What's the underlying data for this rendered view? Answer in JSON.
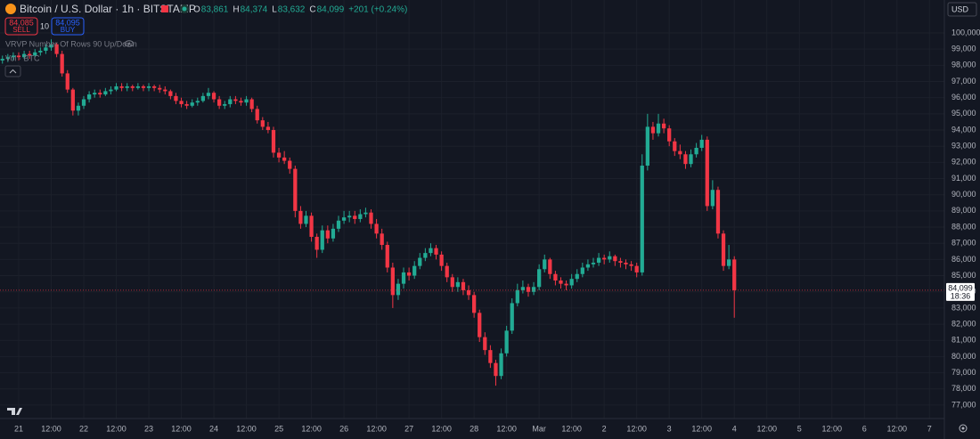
{
  "header": {
    "symbol": "Bitcoin / U.S. Dollar · 1h · BITSTAMP",
    "ohlc": [
      {
        "label": "O",
        "value": "83,861"
      },
      {
        "label": "H",
        "value": "84,374"
      },
      {
        "label": "L",
        "value": "83,632"
      },
      {
        "label": "C",
        "value": "84,099"
      }
    ],
    "change": "+201 (+0.24%)"
  },
  "trade": {
    "sell_price": "84,085",
    "sell": "SELL",
    "spread": "10",
    "buy_price": "84,095",
    "buy": "BUY"
  },
  "indicators": [
    "VRVP Number Of Rows 90 Up/Down",
    "Vol · BTC"
  ],
  "currency": "USD",
  "last_price_label": {
    "price": "84,099",
    "countdown": "18:36"
  },
  "chart_data": {
    "type": "candlestick",
    "up_color": "#22ab94",
    "down_color": "#f23645",
    "grid": true,
    "xlim": [
      -6.9,
      341.5
    ],
    "ylim": [
      76170,
      102036
    ],
    "xticks": [
      {
        "value": 0,
        "label": "21"
      },
      {
        "value": 12,
        "label": "12:00"
      },
      {
        "value": 24,
        "label": "22"
      },
      {
        "value": 36,
        "label": "12:00"
      },
      {
        "value": 48,
        "label": "23"
      },
      {
        "value": 60,
        "label": "12:00"
      },
      {
        "value": 72,
        "label": "24"
      },
      {
        "value": 84,
        "label": "12:00"
      },
      {
        "value": 96,
        "label": "25"
      },
      {
        "value": 108,
        "label": "12:00"
      },
      {
        "value": 120,
        "label": "26"
      },
      {
        "value": 132,
        "label": "12:00"
      },
      {
        "value": 144,
        "label": "27"
      },
      {
        "value": 156,
        "label": "12:00"
      },
      {
        "value": 168,
        "label": "28"
      },
      {
        "value": 180,
        "label": "12:00"
      },
      {
        "value": 192,
        "label": "Mar"
      },
      {
        "value": 204,
        "label": "12:00"
      },
      {
        "value": 216,
        "label": "2"
      },
      {
        "value": 228,
        "label": "12:00"
      },
      {
        "value": 240,
        "label": "3"
      },
      {
        "value": 252,
        "label": "12:00"
      },
      {
        "value": 264,
        "label": "4"
      },
      {
        "value": 276,
        "label": "12:00"
      },
      {
        "value": 288,
        "label": "5"
      },
      {
        "value": 300,
        "label": "12:00"
      },
      {
        "value": 312,
        "label": "6"
      },
      {
        "value": 324,
        "label": "12:00"
      },
      {
        "value": 336,
        "label": "7"
      }
    ],
    "yticks": [
      {
        "value": 77000,
        "label": "77,000"
      },
      {
        "value": 78000,
        "label": "78,000"
      },
      {
        "value": 79000,
        "label": "79,000"
      },
      {
        "value": 80000,
        "label": "80,000"
      },
      {
        "value": 81000,
        "label": "81,000"
      },
      {
        "value": 82000,
        "label": "82,000"
      },
      {
        "value": 83000,
        "label": "83,000"
      },
      {
        "value": 84000,
        "label": "84,000"
      },
      {
        "value": 85000,
        "label": "85,000"
      },
      {
        "value": 86000,
        "label": "86,000"
      },
      {
        "value": 87000,
        "label": "87,000"
      },
      {
        "value": 88000,
        "label": "88,000"
      },
      {
        "value": 89000,
        "label": "89,000"
      },
      {
        "value": 90000,
        "label": "90,000"
      },
      {
        "value": 91000,
        "label": "91,000"
      },
      {
        "value": 92000,
        "label": "92,000"
      },
      {
        "value": 93000,
        "label": "93,000"
      },
      {
        "value": 94000,
        "label": "94,000"
      },
      {
        "value": 95000,
        "label": "95,000"
      },
      {
        "value": 96000,
        "label": "96,000"
      },
      {
        "value": 97000,
        "label": "97,000"
      },
      {
        "value": 98000,
        "label": "98,000"
      },
      {
        "value": 99000,
        "label": "99,000"
      },
      {
        "value": 100000,
        "label": "100,000"
      }
    ],
    "x": [
      -6,
      -4,
      -2,
      0,
      2,
      4,
      6,
      8,
      10,
      12,
      14,
      16,
      18,
      20,
      22,
      24,
      26,
      28,
      30,
      32,
      34,
      36,
      38,
      40,
      42,
      44,
      46,
      48,
      50,
      52,
      54,
      56,
      58,
      60,
      62,
      64,
      66,
      68,
      70,
      72,
      74,
      76,
      78,
      80,
      82,
      84,
      86,
      88,
      90,
      92,
      94,
      96,
      98,
      100,
      102,
      104,
      106,
      108,
      110,
      112,
      114,
      116,
      118,
      120,
      122,
      124,
      126,
      128,
      130,
      132,
      134,
      136,
      138,
      140,
      142,
      144,
      146,
      148,
      150,
      152,
      154,
      156,
      158,
      160,
      162,
      164,
      166,
      168,
      170,
      172,
      174,
      176,
      178,
      180,
      182,
      184,
      186,
      188,
      190,
      192,
      194,
      196,
      198,
      200,
      202,
      204,
      206,
      208,
      210,
      212,
      214,
      216,
      218,
      220,
      222,
      224,
      226,
      228,
      230,
      232,
      234,
      236,
      238,
      240,
      242,
      244,
      246,
      248,
      250,
      252,
      254,
      256,
      258,
      260,
      262,
      264
    ],
    "open": [
      98300,
      98400,
      98500,
      98600,
      98500,
      98700,
      98600,
      98800,
      98900,
      99100,
      99300,
      98700,
      97500,
      96500,
      95200,
      95500,
      95900,
      96200,
      96300,
      96200,
      96400,
      96500,
      96700,
      96600,
      96700,
      96600,
      96700,
      96600,
      96700,
      96600,
      96500,
      96400,
      96100,
      95800,
      95600,
      95500,
      95700,
      95800,
      96100,
      96300,
      95900,
      95500,
      95600,
      95900,
      95800,
      95700,
      95900,
      95300,
      94600,
      94200,
      94000,
      92600,
      92300,
      92100,
      91600,
      89000,
      88200,
      88700,
      87400,
      86600,
      87800,
      87300,
      87900,
      88400,
      88600,
      88700,
      88500,
      88800,
      88900,
      88200,
      87600,
      86900,
      85500,
      83800,
      84500,
      85200,
      85000,
      85600,
      86100,
      86400,
      86700,
      86300,
      85600,
      84900,
      84300,
      84600,
      84100,
      83800,
      82700,
      81200,
      80400,
      79600,
      78800,
      80200,
      81600,
      83300,
      84100,
      84300,
      84000,
      84300,
      85400,
      86000,
      85100,
      84700,
      84500,
      84400,
      84800,
      85100,
      85500,
      85700,
      85800,
      86100,
      86000,
      86200,
      85900,
      85800,
      85700,
      85600,
      85200,
      91800,
      94200,
      93800,
      94400,
      94100,
      93300,
      92700,
      92500,
      91900,
      92500,
      92900,
      93400,
      89300,
      90300,
      87600,
      85600,
      86000
    ],
    "high": [
      98600,
      98700,
      98800,
      98800,
      98900,
      98900,
      99000,
      99100,
      99300,
      99600,
      99400,
      98900,
      97700,
      96600,
      95700,
      96100,
      96400,
      96500,
      96500,
      96600,
      96700,
      96900,
      96900,
      96900,
      96800,
      96900,
      96800,
      96900,
      96800,
      96800,
      96700,
      96500,
      96300,
      96000,
      95800,
      95900,
      96000,
      96300,
      96600,
      96400,
      96100,
      95800,
      96100,
      96100,
      96000,
      96100,
      96000,
      95500,
      94800,
      94500,
      94200,
      92900,
      92700,
      92300,
      91800,
      89300,
      89000,
      88900,
      87600,
      88100,
      88100,
      88200,
      88700,
      89000,
      89000,
      89000,
      89100,
      89200,
      89100,
      88500,
      87900,
      87100,
      85800,
      84800,
      85500,
      85500,
      85900,
      86400,
      86700,
      87000,
      86900,
      86500,
      85800,
      85100,
      84900,
      84800,
      84400,
      84000,
      82900,
      81500,
      80700,
      79800,
      80500,
      81900,
      83600,
      84500,
      84700,
      84500,
      84600,
      85700,
      86300,
      86100,
      85300,
      84900,
      84700,
      85100,
      85400,
      85800,
      86000,
      86100,
      86400,
      86300,
      86500,
      86300,
      86100,
      86000,
      85900,
      85800,
      92500,
      95000,
      94500,
      95000,
      94700,
      94300,
      93500,
      93100,
      92700,
      92800,
      93200,
      93700,
      93600,
      90900,
      90500,
      87800,
      86900,
      86200
    ],
    "low": [
      98100,
      98200,
      98300,
      98300,
      98400,
      98400,
      98500,
      98600,
      98700,
      98900,
      98500,
      97300,
      96300,
      94900,
      94900,
      95300,
      95700,
      96000,
      96000,
      96100,
      96200,
      96400,
      96400,
      96400,
      96400,
      96500,
      96400,
      96400,
      96400,
      96300,
      96200,
      95900,
      95600,
      95400,
      95300,
      95400,
      95500,
      95700,
      95900,
      95700,
      95300,
      95300,
      95400,
      95600,
      95500,
      95500,
      95100,
      94400,
      94000,
      93800,
      92300,
      92000,
      91900,
      91300,
      88600,
      87900,
      88000,
      87100,
      86100,
      86400,
      87000,
      87100,
      87700,
      88200,
      88300,
      88200,
      88300,
      88600,
      87900,
      87300,
      86600,
      85200,
      83000,
      83500,
      84200,
      84700,
      84800,
      85400,
      85900,
      86200,
      86000,
      85300,
      84600,
      84000,
      84000,
      83800,
      83500,
      82400,
      80900,
      80100,
      79300,
      78200,
      78600,
      80000,
      81400,
      83100,
      83900,
      83700,
      83800,
      84100,
      85200,
      84800,
      84400,
      84200,
      84100,
      84200,
      84600,
      84900,
      85300,
      85500,
      85600,
      85700,
      85800,
      85600,
      85500,
      85400,
      85300,
      84900,
      85000,
      91500,
      93400,
      93600,
      93800,
      93000,
      92400,
      92200,
      91600,
      91700,
      92300,
      92700,
      89000,
      89100,
      87300,
      85300,
      85400,
      82400
    ],
    "close": [
      98400,
      98500,
      98600,
      98500,
      98700,
      98600,
      98800,
      98900,
      99100,
      99300,
      98700,
      97500,
      96500,
      95200,
      95500,
      95900,
      96200,
      96300,
      96200,
      96400,
      96500,
      96700,
      96600,
      96700,
      96600,
      96700,
      96600,
      96700,
      96600,
      96500,
      96400,
      96100,
      95800,
      95600,
      95500,
      95700,
      95800,
      96100,
      96300,
      95900,
      95500,
      95600,
      95900,
      95800,
      95700,
      95900,
      95300,
      94600,
      94200,
      94000,
      92600,
      92300,
      92100,
      91600,
      89000,
      88200,
      88700,
      87400,
      86600,
      87800,
      87300,
      87900,
      88400,
      88600,
      88700,
      88500,
      88800,
      88900,
      88200,
      87600,
      86900,
      85500,
      83800,
      84500,
      85200,
      85000,
      85600,
      86100,
      86400,
      86700,
      86300,
      85600,
      84900,
      84300,
      84600,
      84100,
      83800,
      82700,
      81200,
      80400,
      79600,
      78800,
      80200,
      81600,
      83300,
      84100,
      84300,
      84000,
      84300,
      85400,
      86000,
      85100,
      84700,
      84500,
      84400,
      84800,
      85100,
      85500,
      85700,
      85800,
      86100,
      86000,
      86200,
      85900,
      85800,
      85700,
      85600,
      85200,
      91800,
      94200,
      93800,
      94400,
      94100,
      93300,
      92700,
      92500,
      91900,
      92500,
      92900,
      93400,
      89300,
      90300,
      87600,
      85600,
      86000,
      84099
    ]
  }
}
